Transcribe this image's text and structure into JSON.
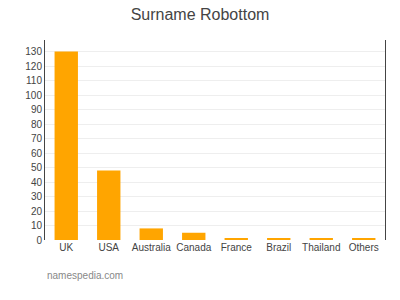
{
  "chart_data": {
    "type": "bar",
    "title": "Surname Robottom",
    "categories": [
      "UK",
      "USA",
      "Australia",
      "Canada",
      "France",
      "Brazil",
      "Thailand",
      "Others"
    ],
    "values": [
      130,
      48,
      8,
      5,
      1,
      1,
      1,
      1
    ],
    "color": "#FFA500",
    "ylim": [
      0,
      138
    ],
    "yticks": [
      0,
      10,
      20,
      30,
      40,
      50,
      60,
      70,
      80,
      90,
      100,
      110,
      120,
      130
    ],
    "grid": true,
    "annotations": [
      "namespedia.com"
    ]
  }
}
